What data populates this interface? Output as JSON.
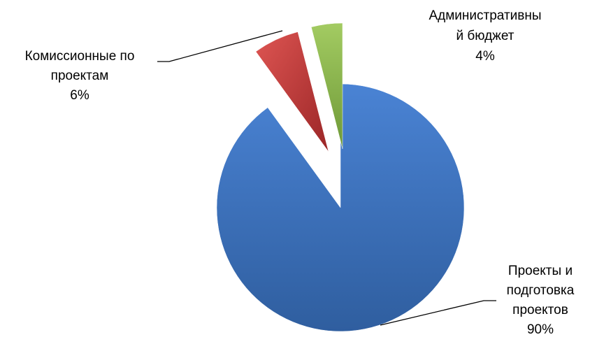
{
  "chart_data": {
    "type": "pie",
    "exploded": true,
    "categories": [
      "Проекты и подготовка проектов",
      "Комиссионные по проектам",
      "Административный бюджет"
    ],
    "values": [
      90,
      6,
      4
    ],
    "value_format": "percent",
    "colors": [
      "#3f74c1",
      "#c0393b",
      "#8ab94a"
    ],
    "data_labels": [
      {
        "lines": [
          "Проекты и",
          "подготовка",
          "проектов"
        ],
        "value": "90%"
      },
      {
        "lines": [
          "Комиссионные по",
          "проектам"
        ],
        "value": "6%"
      },
      {
        "lines": [
          "Административны",
          "й бюджет"
        ],
        "value": "4%"
      }
    ],
    "legend": "none"
  }
}
